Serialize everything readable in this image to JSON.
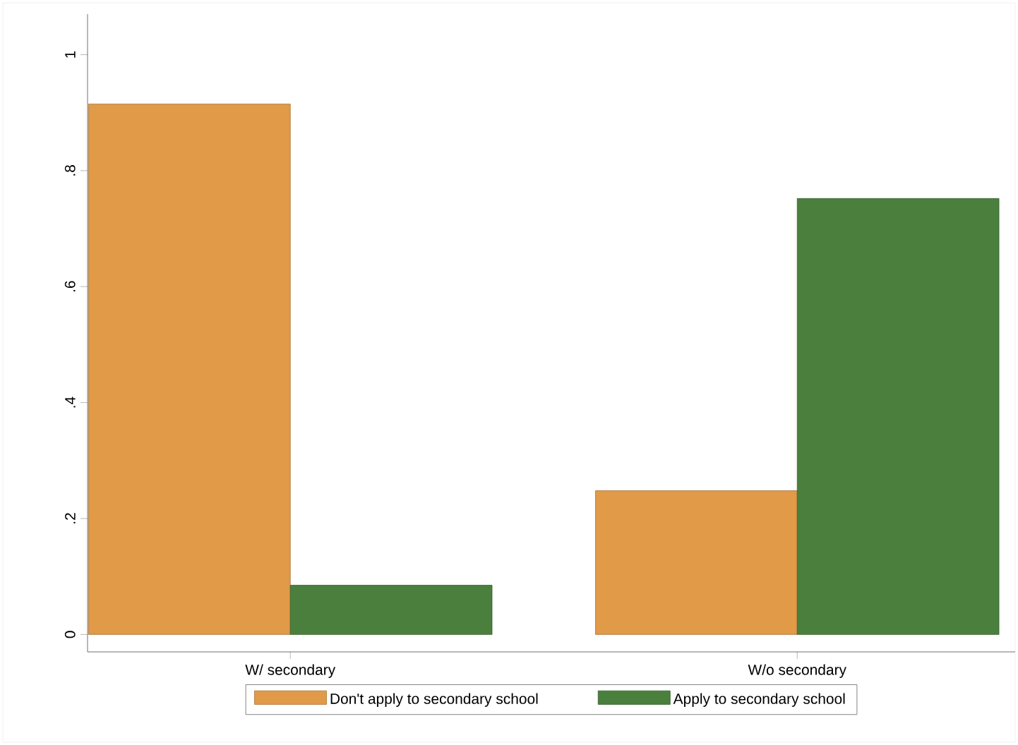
{
  "chart_data": {
    "type": "bar",
    "categories": [
      "W/ secondary",
      "W/o secondary"
    ],
    "series": [
      {
        "name": "Don't apply to secondary school",
        "color": "#e09a48",
        "values": [
          0.915,
          0.248
        ]
      },
      {
        "name": "Apply to secondary school",
        "color": "#4a7f3e",
        "values": [
          0.085,
          0.752
        ]
      }
    ],
    "ylim": [
      -0.03,
      1.07
    ],
    "yticks": [
      0,
      {
        "value": 0.2,
        "label": ".2"
      },
      {
        "value": 0.4,
        "label": ".4"
      },
      {
        "value": 0.6,
        "label": ".6"
      },
      {
        "value": 0.8,
        "label": ".8"
      },
      {
        "value": 1,
        "label": "1"
      }
    ],
    "grid": false,
    "legend": "bottom"
  }
}
